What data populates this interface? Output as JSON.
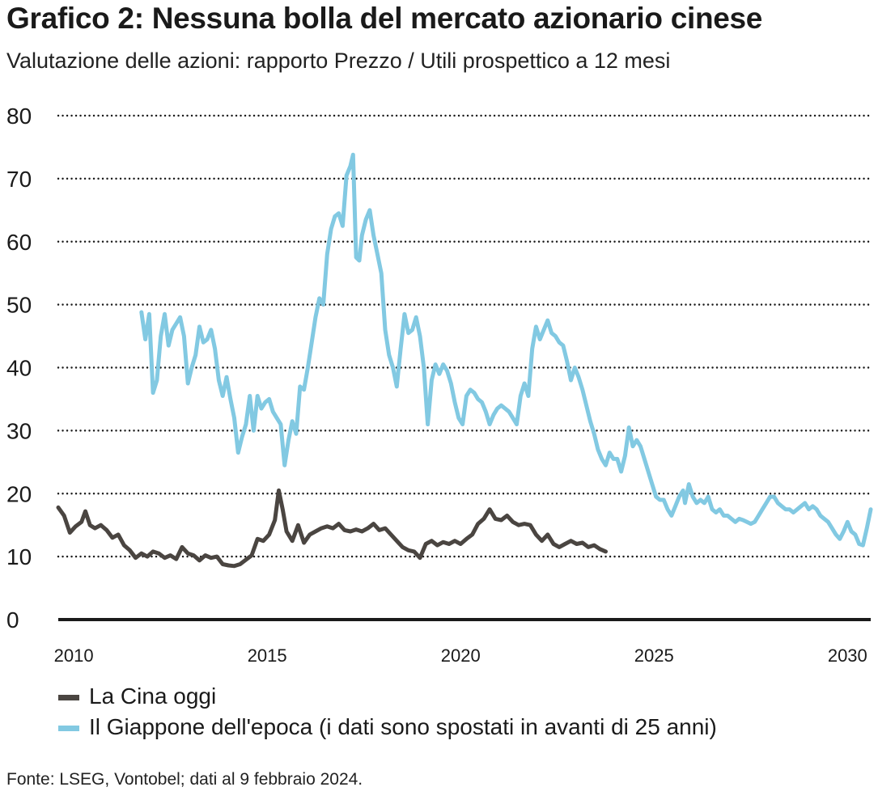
{
  "title": "Grafico 2: Nessuna bolla del mercato azionario cinese",
  "subtitle": "Valutazione delle azioni: rapporto Prezzo / Utili prospettico a 12 mesi",
  "source": "Fonte: LSEG, Vontobel; dati al 9 febbraio 2024.",
  "colors": {
    "china": "#4a4541",
    "japan": "#82c9e2",
    "grid": "#1a1a1a",
    "axis": "#1a1a1a"
  },
  "chart_data": {
    "type": "line",
    "title": "Grafico 2: Nessuna bolla del mercato azionario cinese",
    "xlabel": "",
    "ylabel": "",
    "xlim": [
      2009.6,
      2030.6
    ],
    "ylim": [
      0,
      80
    ],
    "yticks": [
      0,
      10,
      20,
      30,
      40,
      50,
      60,
      70,
      80
    ],
    "ytick_labels": [
      "0",
      "10",
      "20",
      "30",
      "40",
      "50",
      "60",
      "70",
      "80"
    ],
    "xticks": [
      2010,
      2015,
      2020,
      2025,
      2030
    ],
    "xtick_labels": [
      "2010",
      "2015",
      "2020",
      "2025",
      "2030"
    ],
    "grid": "horizontal dotted",
    "legend_position": "bottom-left",
    "series": [
      {
        "name": "La Cina oggi",
        "color": "#4a4541",
        "points": [
          [
            2009.6,
            17.8
          ],
          [
            2009.75,
            16.5
          ],
          [
            2009.9,
            13.8
          ],
          [
            2010.05,
            14.8
          ],
          [
            2010.2,
            15.5
          ],
          [
            2010.3,
            17.2
          ],
          [
            2010.42,
            15.0
          ],
          [
            2010.55,
            14.5
          ],
          [
            2010.7,
            15.0
          ],
          [
            2010.85,
            14.2
          ],
          [
            2011.0,
            13.0
          ],
          [
            2011.15,
            13.5
          ],
          [
            2011.3,
            11.8
          ],
          [
            2011.45,
            11.0
          ],
          [
            2011.6,
            9.8
          ],
          [
            2011.75,
            10.5
          ],
          [
            2011.9,
            10.0
          ],
          [
            2012.05,
            10.8
          ],
          [
            2012.2,
            10.5
          ],
          [
            2012.35,
            9.8
          ],
          [
            2012.5,
            10.2
          ],
          [
            2012.65,
            9.6
          ],
          [
            2012.8,
            11.5
          ],
          [
            2012.95,
            10.5
          ],
          [
            2013.1,
            10.2
          ],
          [
            2013.25,
            9.4
          ],
          [
            2013.4,
            10.2
          ],
          [
            2013.55,
            9.8
          ],
          [
            2013.7,
            10.0
          ],
          [
            2013.85,
            8.8
          ],
          [
            2014.0,
            8.6
          ],
          [
            2014.15,
            8.5
          ],
          [
            2014.3,
            8.8
          ],
          [
            2014.45,
            9.5
          ],
          [
            2014.6,
            10.2
          ],
          [
            2014.75,
            12.8
          ],
          [
            2014.9,
            12.5
          ],
          [
            2015.05,
            13.5
          ],
          [
            2015.2,
            15.8
          ],
          [
            2015.3,
            20.5
          ],
          [
            2015.4,
            17.5
          ],
          [
            2015.5,
            14.0
          ],
          [
            2015.65,
            12.5
          ],
          [
            2015.8,
            15.0
          ],
          [
            2015.95,
            12.2
          ],
          [
            2016.1,
            13.5
          ],
          [
            2016.25,
            14.0
          ],
          [
            2016.4,
            14.5
          ],
          [
            2016.55,
            14.8
          ],
          [
            2016.7,
            14.5
          ],
          [
            2016.85,
            15.2
          ],
          [
            2017.0,
            14.2
          ],
          [
            2017.15,
            14.0
          ],
          [
            2017.3,
            14.3
          ],
          [
            2017.45,
            14.0
          ],
          [
            2017.6,
            14.5
          ],
          [
            2017.75,
            15.2
          ],
          [
            2017.9,
            14.2
          ],
          [
            2018.05,
            14.5
          ],
          [
            2018.2,
            13.5
          ],
          [
            2018.35,
            12.5
          ],
          [
            2018.5,
            11.5
          ],
          [
            2018.65,
            11.0
          ],
          [
            2018.8,
            10.8
          ],
          [
            2018.95,
            9.8
          ],
          [
            2019.1,
            12.0
          ],
          [
            2019.25,
            12.5
          ],
          [
            2019.4,
            11.8
          ],
          [
            2019.55,
            12.3
          ],
          [
            2019.7,
            12.0
          ],
          [
            2019.85,
            12.5
          ],
          [
            2020.0,
            12.0
          ],
          [
            2020.15,
            12.8
          ],
          [
            2020.3,
            13.5
          ],
          [
            2020.45,
            15.2
          ],
          [
            2020.6,
            16.0
          ],
          [
            2020.75,
            17.5
          ],
          [
            2020.9,
            16.0
          ],
          [
            2021.05,
            15.8
          ],
          [
            2021.2,
            16.5
          ],
          [
            2021.35,
            15.5
          ],
          [
            2021.5,
            15.0
          ],
          [
            2021.65,
            15.2
          ],
          [
            2021.8,
            15.0
          ],
          [
            2021.95,
            13.5
          ],
          [
            2022.1,
            12.5
          ],
          [
            2022.25,
            13.5
          ],
          [
            2022.4,
            12.0
          ],
          [
            2022.55,
            11.5
          ],
          [
            2022.7,
            12.0
          ],
          [
            2022.85,
            12.5
          ],
          [
            2023.0,
            12.0
          ],
          [
            2023.15,
            12.2
          ],
          [
            2023.3,
            11.5
          ],
          [
            2023.45,
            11.8
          ],
          [
            2023.6,
            11.2
          ],
          [
            2023.75,
            10.8
          ]
        ]
      },
      {
        "name": "Il Giappone dell'epoca (i dati sono spostati in avanti di 25 anni)",
        "color": "#82c9e2",
        "points": [
          [
            2011.75,
            48.8
          ],
          [
            2011.85,
            44.5
          ],
          [
            2011.95,
            48.5
          ],
          [
            2012.05,
            36.0
          ],
          [
            2012.15,
            38.0
          ],
          [
            2012.25,
            45.0
          ],
          [
            2012.35,
            48.5
          ],
          [
            2012.45,
            43.5
          ],
          [
            2012.55,
            46.0
          ],
          [
            2012.65,
            47.0
          ],
          [
            2012.75,
            48.0
          ],
          [
            2012.85,
            45.0
          ],
          [
            2012.95,
            37.5
          ],
          [
            2013.05,
            40.0
          ],
          [
            2013.15,
            42.0
          ],
          [
            2013.25,
            46.5
          ],
          [
            2013.35,
            44.0
          ],
          [
            2013.45,
            44.5
          ],
          [
            2013.55,
            46.0
          ],
          [
            2013.65,
            43.0
          ],
          [
            2013.75,
            38.0
          ],
          [
            2013.85,
            35.5
          ],
          [
            2013.95,
            38.5
          ],
          [
            2014.05,
            35.0
          ],
          [
            2014.15,
            32.0
          ],
          [
            2014.25,
            26.5
          ],
          [
            2014.35,
            29.0
          ],
          [
            2014.45,
            31.0
          ],
          [
            2014.55,
            35.5
          ],
          [
            2014.65,
            30.0
          ],
          [
            2014.75,
            35.5
          ],
          [
            2014.85,
            33.5
          ],
          [
            2014.95,
            34.5
          ],
          [
            2015.05,
            35.0
          ],
          [
            2015.15,
            33.0
          ],
          [
            2015.25,
            32.0
          ],
          [
            2015.35,
            31.0
          ],
          [
            2015.45,
            24.5
          ],
          [
            2015.55,
            28.5
          ],
          [
            2015.65,
            31.5
          ],
          [
            2015.75,
            29.5
          ],
          [
            2015.85,
            37.0
          ],
          [
            2015.95,
            36.5
          ],
          [
            2016.05,
            40.0
          ],
          [
            2016.15,
            44.0
          ],
          [
            2016.25,
            48.0
          ],
          [
            2016.35,
            51.0
          ],
          [
            2016.45,
            50.0
          ],
          [
            2016.55,
            58.0
          ],
          [
            2016.65,
            62.0
          ],
          [
            2016.75,
            64.0
          ],
          [
            2016.85,
            64.5
          ],
          [
            2016.95,
            62.5
          ],
          [
            2017.05,
            70.5
          ],
          [
            2017.15,
            72.0
          ],
          [
            2017.22,
            73.8
          ],
          [
            2017.3,
            57.5
          ],
          [
            2017.38,
            57.0
          ],
          [
            2017.45,
            61.0
          ],
          [
            2017.55,
            63.5
          ],
          [
            2017.65,
            65.0
          ],
          [
            2017.75,
            61.0
          ],
          [
            2017.85,
            58.0
          ],
          [
            2017.95,
            55.0
          ],
          [
            2018.05,
            46.0
          ],
          [
            2018.15,
            42.0
          ],
          [
            2018.25,
            40.0
          ],
          [
            2018.35,
            37.0
          ],
          [
            2018.45,
            43.0
          ],
          [
            2018.55,
            48.5
          ],
          [
            2018.65,
            45.5
          ],
          [
            2018.75,
            46.0
          ],
          [
            2018.85,
            48.0
          ],
          [
            2018.95,
            45.0
          ],
          [
            2019.05,
            40.0
          ],
          [
            2019.15,
            31.0
          ],
          [
            2019.25,
            38.0
          ],
          [
            2019.35,
            40.5
          ],
          [
            2019.45,
            39.0
          ],
          [
            2019.55,
            40.5
          ],
          [
            2019.65,
            39.5
          ],
          [
            2019.75,
            37.5
          ],
          [
            2019.85,
            34.5
          ],
          [
            2019.95,
            32.0
          ],
          [
            2020.05,
            31.0
          ],
          [
            2020.15,
            35.5
          ],
          [
            2020.25,
            36.5
          ],
          [
            2020.35,
            36.0
          ],
          [
            2020.45,
            35.0
          ],
          [
            2020.55,
            34.5
          ],
          [
            2020.65,
            33.0
          ],
          [
            2020.75,
            31.0
          ],
          [
            2020.85,
            32.5
          ],
          [
            2020.95,
            33.5
          ],
          [
            2021.05,
            34.0
          ],
          [
            2021.15,
            33.5
          ],
          [
            2021.25,
            33.0
          ],
          [
            2021.35,
            32.0
          ],
          [
            2021.45,
            31.0
          ],
          [
            2021.55,
            35.5
          ],
          [
            2021.65,
            37.5
          ],
          [
            2021.75,
            35.5
          ],
          [
            2021.85,
            43.0
          ],
          [
            2021.95,
            46.5
          ],
          [
            2022.05,
            44.5
          ],
          [
            2022.15,
            46.0
          ],
          [
            2022.25,
            47.5
          ],
          [
            2022.35,
            45.5
          ],
          [
            2022.45,
            45.0
          ],
          [
            2022.55,
            44.0
          ],
          [
            2022.65,
            43.5
          ],
          [
            2022.75,
            41.0
          ],
          [
            2022.85,
            38.0
          ],
          [
            2022.95,
            40.0
          ],
          [
            2023.05,
            38.5
          ],
          [
            2023.15,
            36.5
          ],
          [
            2023.25,
            34.0
          ],
          [
            2023.35,
            31.5
          ],
          [
            2023.45,
            29.5
          ],
          [
            2023.55,
            27.0
          ],
          [
            2023.65,
            25.5
          ],
          [
            2023.75,
            24.5
          ],
          [
            2023.85,
            26.5
          ],
          [
            2023.95,
            25.5
          ],
          [
            2024.05,
            25.5
          ],
          [
            2024.15,
            23.5
          ],
          [
            2024.25,
            26.0
          ],
          [
            2024.35,
            30.5
          ],
          [
            2024.45,
            27.5
          ],
          [
            2024.55,
            28.5
          ],
          [
            2024.65,
            27.5
          ],
          [
            2024.75,
            25.5
          ],
          [
            2024.85,
            23.5
          ],
          [
            2024.95,
            21.5
          ],
          [
            2025.05,
            19.5
          ],
          [
            2025.15,
            19.0
          ],
          [
            2025.25,
            19.0
          ],
          [
            2025.35,
            17.5
          ],
          [
            2025.45,
            16.5
          ],
          [
            2025.55,
            18.0
          ],
          [
            2025.65,
            19.5
          ],
          [
            2025.75,
            20.5
          ],
          [
            2025.8,
            18.5
          ],
          [
            2025.9,
            21.5
          ],
          [
            2026.0,
            19.5
          ],
          [
            2026.1,
            18.5
          ],
          [
            2026.2,
            19.0
          ],
          [
            2026.3,
            18.5
          ],
          [
            2026.4,
            19.5
          ],
          [
            2026.5,
            17.5
          ],
          [
            2026.6,
            17.0
          ],
          [
            2026.7,
            17.5
          ],
          [
            2026.8,
            16.5
          ],
          [
            2026.9,
            16.5
          ],
          [
            2027.0,
            16.0
          ],
          [
            2027.1,
            15.5
          ],
          [
            2027.2,
            16.0
          ],
          [
            2027.3,
            15.8
          ],
          [
            2027.4,
            15.5
          ],
          [
            2027.5,
            15.2
          ],
          [
            2027.6,
            15.5
          ],
          [
            2027.7,
            16.5
          ],
          [
            2027.8,
            17.5
          ],
          [
            2027.9,
            18.5
          ],
          [
            2028.0,
            19.5
          ],
          [
            2028.1,
            19.5
          ],
          [
            2028.2,
            18.5
          ],
          [
            2028.3,
            18.0
          ],
          [
            2028.4,
            17.5
          ],
          [
            2028.5,
            17.5
          ],
          [
            2028.6,
            17.0
          ],
          [
            2028.7,
            17.5
          ],
          [
            2028.8,
            18.0
          ],
          [
            2028.9,
            18.5
          ],
          [
            2029.0,
            17.5
          ],
          [
            2029.1,
            18.0
          ],
          [
            2029.2,
            17.5
          ],
          [
            2029.3,
            16.5
          ],
          [
            2029.4,
            16.0
          ],
          [
            2029.5,
            15.5
          ],
          [
            2029.6,
            14.5
          ],
          [
            2029.7,
            13.5
          ],
          [
            2029.8,
            12.8
          ],
          [
            2029.9,
            14.0
          ],
          [
            2030.0,
            15.5
          ],
          [
            2030.1,
            14.0
          ],
          [
            2030.2,
            13.5
          ],
          [
            2030.3,
            12.0
          ],
          [
            2030.4,
            11.8
          ],
          [
            2030.5,
            14.5
          ],
          [
            2030.6,
            17.5
          ]
        ]
      }
    ]
  }
}
